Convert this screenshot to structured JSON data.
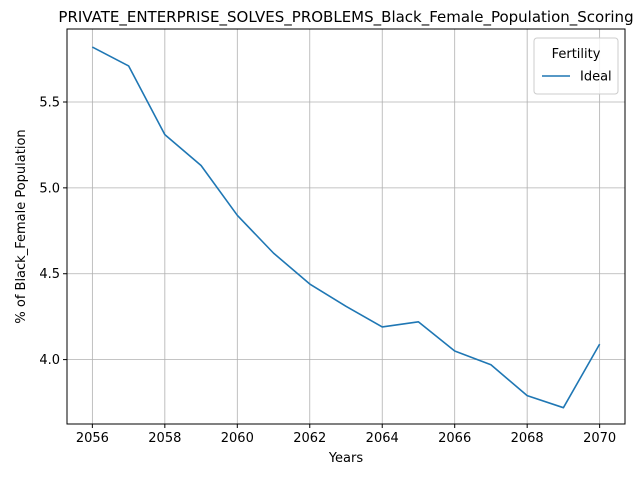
{
  "chart_data": {
    "type": "line",
    "title": "PRIVATE_ENTERPRISE_SOLVES_PROBLEMS_Black_Female_Population_Scoring",
    "xlabel": "Years",
    "ylabel": "% of Black_Female Population",
    "x": [
      2056,
      2057,
      2058,
      2059,
      2060,
      2061,
      2062,
      2063,
      2064,
      2065,
      2066,
      2067,
      2068,
      2069,
      2070
    ],
    "series": [
      {
        "name": "Ideal",
        "color": "#1f77b4",
        "values": [
          5.82,
          5.71,
          5.31,
          5.13,
          4.84,
          4.62,
          4.44,
          4.31,
          4.19,
          4.22,
          4.05,
          3.97,
          3.79,
          3.72,
          4.09
        ]
      }
    ],
    "xlim": [
      2055.3,
      2070.7
    ],
    "ylim": [
      3.625,
      5.925
    ],
    "xticks": [
      "2056",
      "2058",
      "2060",
      "2062",
      "2064",
      "2066",
      "2068",
      "2070"
    ],
    "xtick_values": [
      2056,
      2058,
      2060,
      2062,
      2064,
      2066,
      2068,
      2070
    ],
    "yticks": [
      "4.0",
      "4.5",
      "5.0",
      "5.5"
    ],
    "ytick_values": [
      4.0,
      4.5,
      5.0,
      5.5
    ],
    "grid": true,
    "legend": {
      "title": "Fertility",
      "placement": "top-right"
    }
  }
}
